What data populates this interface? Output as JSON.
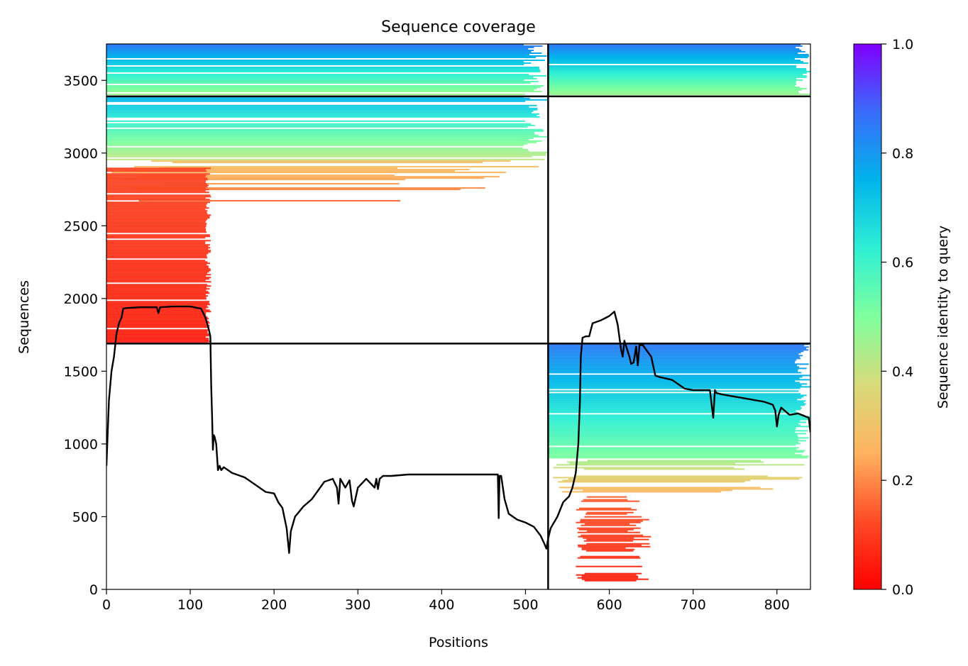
{
  "chart_data": {
    "type": "heatmap",
    "title": "Sequence coverage",
    "xlabel": "Positions",
    "ylabel": "Sequences",
    "xlim": [
      0,
      840
    ],
    "ylim": [
      0,
      3750
    ],
    "x_ticks": [
      0,
      100,
      200,
      300,
      400,
      500,
      600,
      700,
      800
    ],
    "y_ticks": [
      0,
      500,
      1000,
      1500,
      2000,
      2500,
      3000,
      3500
    ],
    "colorbar": {
      "label": "Sequence identity to query",
      "range": [
        0.0,
        1.0
      ],
      "ticks": [
        "0.0",
        "0.2",
        "0.4",
        "0.6",
        "0.8",
        "1.0"
      ],
      "colormap": "rainbow_r"
    },
    "chain_boundaries": {
      "positions": [
        527
      ],
      "sequences": [
        1690,
        3390
      ]
    },
    "coverage_blocks": [
      {
        "x": [
          0,
          527
        ],
        "y": [
          3390,
          3750
        ],
        "identity_range": [
          0.45,
          0.85
        ],
        "density": "high"
      },
      {
        "x": [
          527,
          840
        ],
        "y": [
          3390,
          3750
        ],
        "identity_range": [
          0.45,
          0.85
        ],
        "density": "high"
      },
      {
        "x": [
          0,
          527
        ],
        "y": [
          2950,
          3390
        ],
        "identity_range": [
          0.4,
          0.75
        ],
        "density": "high"
      },
      {
        "x": [
          0,
          527
        ],
        "y": [
          2650,
          2950
        ],
        "identity_range": [
          0.15,
          0.3
        ],
        "density": "medium"
      },
      {
        "x": [
          0,
          125
        ],
        "y": [
          1690,
          2900
        ],
        "identity_range": [
          0.05,
          0.12
        ],
        "density": "high"
      },
      {
        "x": [
          527,
          840
        ],
        "y": [
          900,
          1690
        ],
        "identity_range": [
          0.5,
          0.85
        ],
        "density": "high"
      },
      {
        "x": [
          527,
          840
        ],
        "y": [
          650,
          900
        ],
        "identity_range": [
          0.25,
          0.45
        ],
        "density": "medium"
      },
      {
        "x": [
          560,
          650
        ],
        "y": [
          0,
          650
        ],
        "identity_range": [
          0.05,
          0.15
        ],
        "density": "medium"
      }
    ],
    "series": [
      {
        "x": [
          0,
          3,
          6,
          9,
          12,
          15,
          18,
          20,
          25,
          40,
          60,
          62,
          64,
          80,
          100,
          113,
          118,
          122,
          124,
          125,
          126,
          127,
          128,
          129,
          131,
          133,
          135,
          137,
          140,
          150,
          165,
          175,
          190,
          200,
          205,
          210,
          215,
          218,
          220,
          225,
          235,
          245,
          255,
          260,
          270,
          275,
          277,
          279,
          285,
          290,
          293,
          295,
          300,
          310,
          320,
          322,
          324,
          326,
          330,
          340,
          360,
          380,
          400,
          420,
          440,
          460,
          467,
          468,
          469,
          471,
          475,
          480,
          490,
          500,
          510,
          518,
          522,
          525,
          527,
          530,
          533,
          538,
          545,
          552,
          556,
          560,
          563,
          565,
          566,
          568,
          572,
          576,
          580,
          590,
          600,
          604,
          606,
          610,
          614,
          616,
          618,
          624,
          626,
          629,
          632,
          634,
          636,
          640,
          650,
          655,
          660,
          675,
          690,
          700,
          715,
          720,
          724,
          726,
          728,
          735,
          755,
          775,
          785,
          795,
          798,
          800,
          802,
          805,
          815,
          825,
          838,
          840
        ],
        "y": [
          850,
          1300,
          1500,
          1600,
          1760,
          1830,
          1870,
          1930,
          1935,
          1940,
          1940,
          1900,
          1940,
          1945,
          1945,
          1930,
          1870,
          1790,
          1740,
          1400,
          1200,
          960,
          1060,
          1050,
          1000,
          820,
          850,
          820,
          840,
          800,
          770,
          730,
          670,
          660,
          600,
          560,
          420,
          250,
          400,
          500,
          570,
          620,
          700,
          740,
          760,
          700,
          590,
          760,
          700,
          750,
          610,
          570,
          700,
          760,
          700,
          760,
          690,
          760,
          780,
          780,
          790,
          790,
          790,
          790,
          790,
          790,
          790,
          490,
          780,
          780,
          620,
          520,
          480,
          460,
          430,
          370,
          320,
          280,
          350,
          420,
          450,
          500,
          600,
          640,
          700,
          800,
          1000,
          1300,
          1600,
          1730,
          1740,
          1740,
          1830,
          1850,
          1880,
          1900,
          1910,
          1820,
          1650,
          1600,
          1710,
          1600,
          1550,
          1560,
          1670,
          1540,
          1680,
          1680,
          1600,
          1470,
          1460,
          1440,
          1380,
          1370,
          1370,
          1370,
          1180,
          1370,
          1350,
          1340,
          1320,
          1300,
          1290,
          1270,
          1230,
          1120,
          1200,
          1250,
          1200,
          1210,
          1180,
          1080
        ]
      }
    ]
  }
}
